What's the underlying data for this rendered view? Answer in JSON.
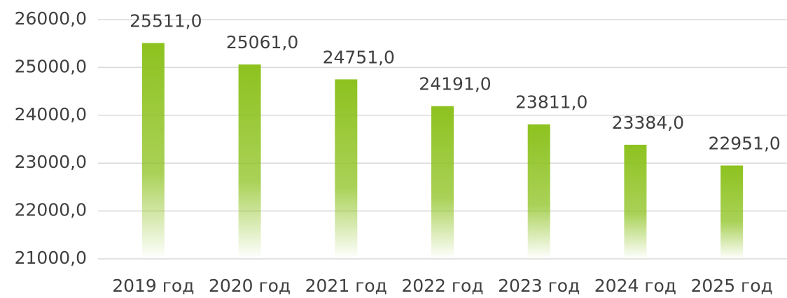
{
  "chart_data": {
    "type": "bar",
    "categories": [
      "2019 год",
      "2020 год",
      "2021 год",
      "2022 год",
      "2023 год",
      "2024 год",
      "2025 год"
    ],
    "values": [
      25511,
      25061,
      24751,
      24191,
      23811,
      23384,
      22951
    ],
    "value_labels": [
      "25511,0",
      "25061,0",
      "24751,0",
      "24191,0",
      "23811,0",
      "23384,0",
      "22951,0"
    ],
    "color": "#8dc21f",
    "ylim": [
      21000,
      26000
    ],
    "yticks": [
      {
        "value": 21000,
        "label": "21000,0"
      },
      {
        "value": 22000,
        "label": "22000,0"
      },
      {
        "value": 23000,
        "label": "23000,0"
      },
      {
        "value": 24000,
        "label": "24000,0"
      },
      {
        "value": 25000,
        "label": "25000,0"
      },
      {
        "value": 26000,
        "label": "26000,0"
      }
    ],
    "grid": true
  }
}
